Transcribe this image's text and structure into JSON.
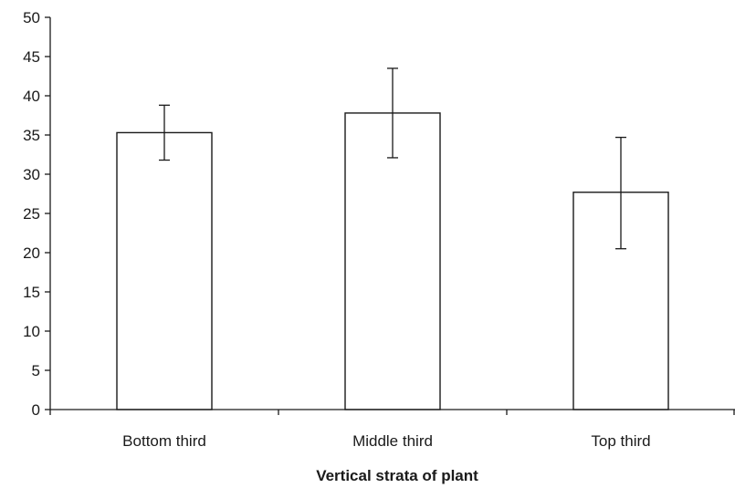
{
  "chart_data": {
    "type": "bar",
    "title": "",
    "xlabel": "Vertical strata of plant",
    "ylabel": "",
    "categories": [
      "Bottom third",
      "Middle third",
      "Top third"
    ],
    "series": [
      {
        "values": [
          35.3,
          37.8,
          27.7
        ],
        "error_low": [
          31.8,
          32.1,
          20.5
        ],
        "error_high": [
          38.8,
          43.5,
          34.7
        ]
      }
    ],
    "ylim": [
      0,
      50
    ],
    "yticks": [
      "0",
      "5",
      "10",
      "15",
      "20",
      "25",
      "30",
      "35",
      "40",
      "45",
      "50"
    ],
    "grid": false,
    "legend": "none",
    "colors": {
      "bar_fill": "#ffffff",
      "bar_stroke": "#1a1a1a",
      "axis": "#1a1a1a"
    }
  }
}
